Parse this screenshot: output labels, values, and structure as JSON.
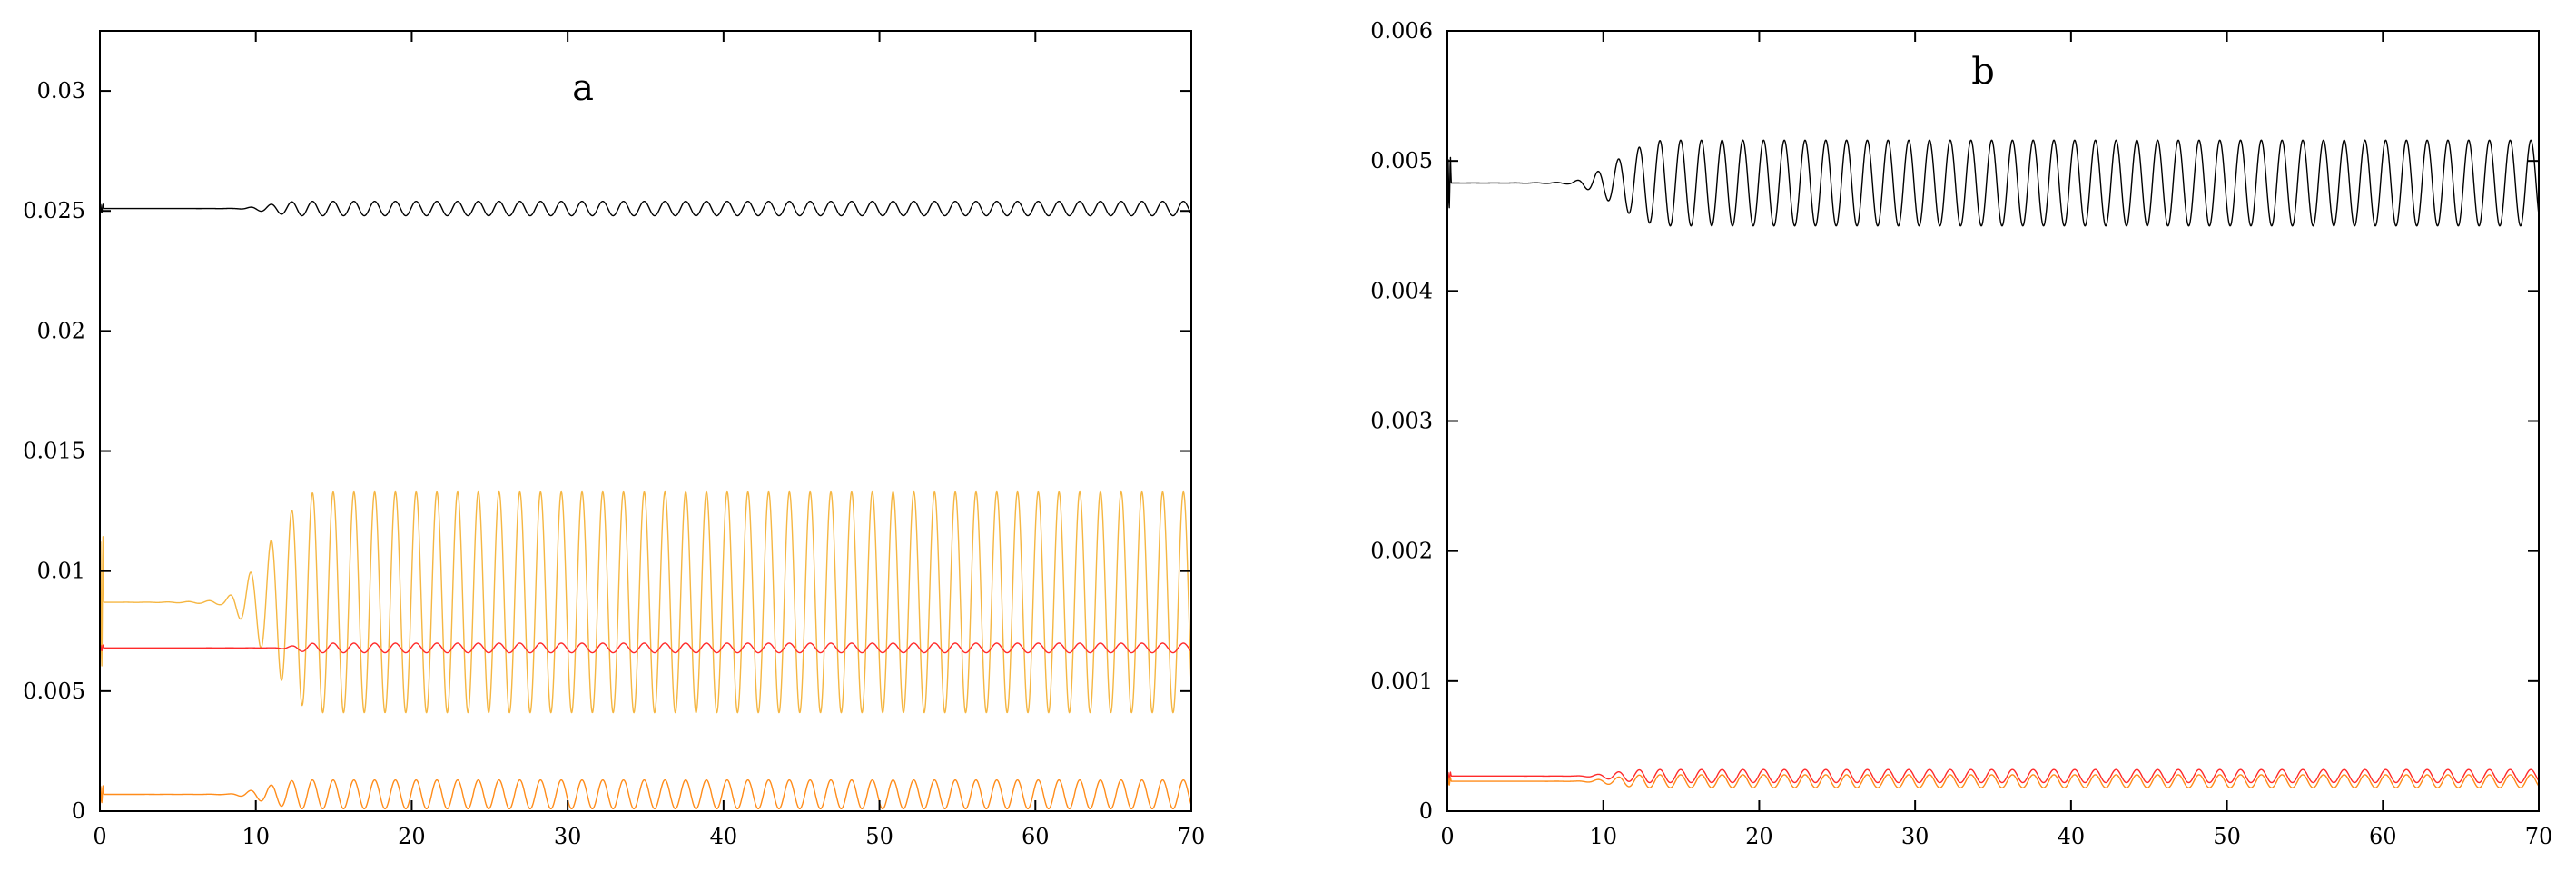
{
  "chart_data": [
    {
      "type": "line",
      "title": "a",
      "xlim": [
        0,
        70
      ],
      "ylim": [
        0,
        0.0325
      ],
      "xticks": [
        0,
        10,
        20,
        30,
        40,
        50,
        60,
        70
      ],
      "yticks": [
        0,
        0.005,
        0.01,
        0.015,
        0.02,
        0.025,
        0.03
      ],
      "xtick_labels": [
        "0",
        "10",
        "20",
        "30",
        "40",
        "50",
        "60",
        "70"
      ],
      "ytick_labels": [
        "0",
        "0.005",
        "0.01",
        "0.015",
        "0.02",
        "0.025",
        "0.03"
      ],
      "grid": false,
      "series": [
        {
          "color": "#000000",
          "baseline": 0.0251,
          "amplitude": 0.0003,
          "onset": 8.5,
          "growth_end": 13,
          "period": 1.33
        },
        {
          "color": "#f5b642",
          "baseline": 0.0087,
          "amplitude": 0.0046,
          "onset": 7.5,
          "growth_end": 14,
          "period": 1.33
        },
        {
          "color": "#ff2a2a",
          "baseline": 0.0068,
          "amplitude": 0.0002,
          "onset": 11,
          "growth_end": 14,
          "period": 1.33
        },
        {
          "color": "#ff8c1a",
          "baseline": 0.0007,
          "amplitude": 0.0006,
          "onset": 8,
          "growth_end": 13,
          "period": 1.33
        }
      ]
    },
    {
      "type": "line",
      "title": "b",
      "xlim": [
        0,
        70
      ],
      "ylim": [
        0,
        0.006
      ],
      "xticks": [
        0,
        10,
        20,
        30,
        40,
        50,
        60,
        70
      ],
      "yticks": [
        0,
        0.001,
        0.002,
        0.003,
        0.004,
        0.005,
        0.006
      ],
      "xtick_labels": [
        "0",
        "10",
        "20",
        "30",
        "40",
        "50",
        "60",
        "70"
      ],
      "ytick_labels": [
        "0",
        "0.001",
        "0.002",
        "0.003",
        "0.004",
        "0.005",
        "0.006"
      ],
      "grid": false,
      "series": [
        {
          "color": "#000000",
          "baseline": 0.00483,
          "amplitude": 0.00033,
          "onset": 7.5,
          "growth_end": 14,
          "period": 1.33
        },
        {
          "color": "#ff2a2a",
          "baseline": 0.00027,
          "amplitude": 5e-05,
          "onset": 8,
          "growth_end": 13,
          "period": 1.33
        },
        {
          "color": "#ff8c1a",
          "baseline": 0.00023,
          "amplitude": 5e-05,
          "onset": 8,
          "growth_end": 13,
          "period": 1.33
        }
      ]
    }
  ]
}
